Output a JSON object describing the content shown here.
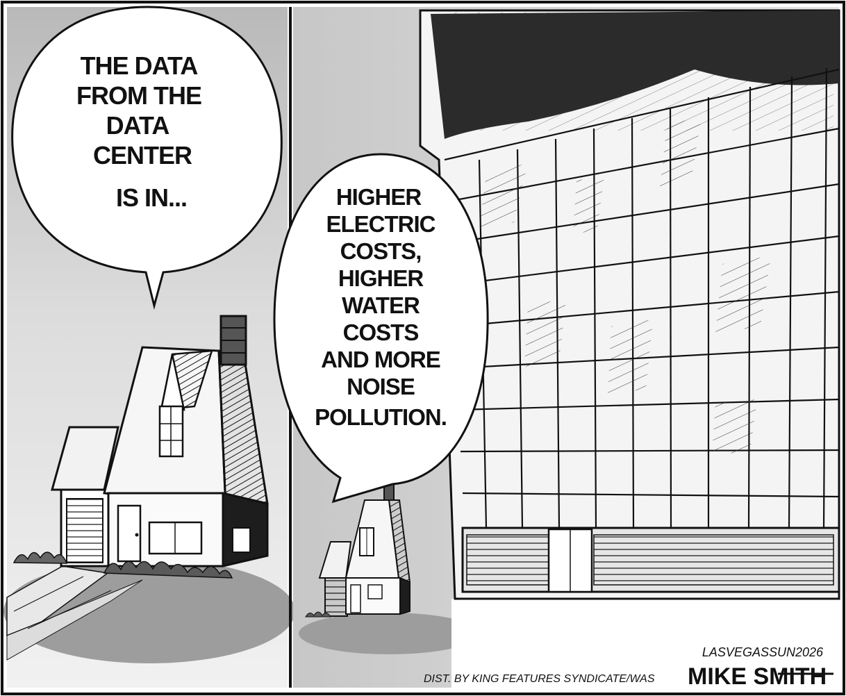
{
  "panel_left": {
    "speech_lines": [
      "THE DATA",
      "FROM THE",
      "DATA",
      "CENTER",
      "IS IN..."
    ]
  },
  "panel_right": {
    "speech_lines": [
      "HIGHER",
      "ELECTRIC",
      "COSTS,",
      "HIGHER",
      "WATER",
      "COSTS",
      "AND MORE",
      "NOISE",
      "POLLUTION."
    ]
  },
  "credits": {
    "source": "LASVEGASSUN2026",
    "distributor": "DIST. BY KING FEATURES SYNDICATE/WAS",
    "artist": "MIKE SMITH"
  },
  "colors": {
    "ink": "#111111",
    "gray_light": "#d9d9d9",
    "gray_mid": "#bdbdbd",
    "gray_dark": "#9a9a9a"
  }
}
